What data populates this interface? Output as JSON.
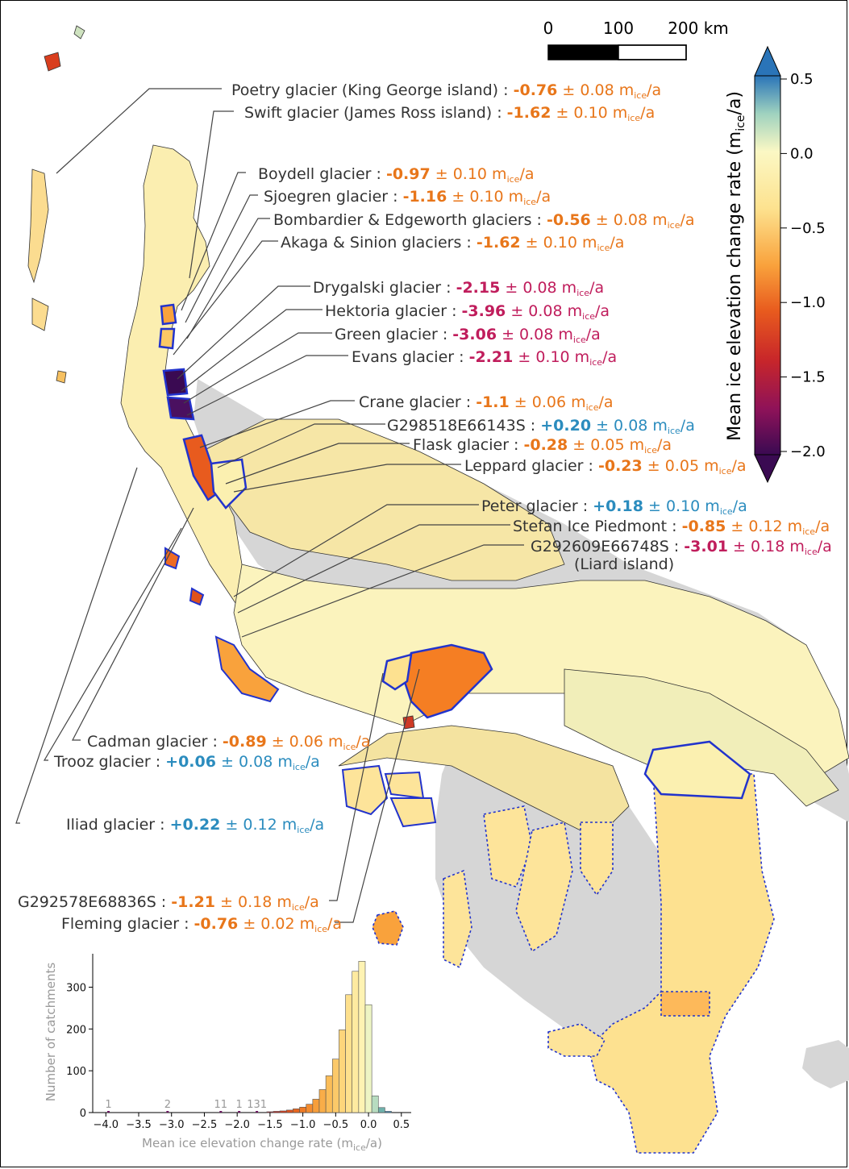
{
  "scale_bar": {
    "ticks": [
      "0",
      "100",
      "200 km"
    ]
  },
  "colorbar": {
    "title": "Mean ice elevation change rate (m",
    "title_sub": "ice",
    "title_end": "/a)",
    "ticks": [
      "0.5",
      "0.0",
      "−0.5",
      "−1.0",
      "−1.5",
      "−2.0"
    ],
    "range": [
      -2.0,
      0.5
    ],
    "colormap": "spectral (purple → red → orange → yellow → green → blue)"
  },
  "labels": [
    {
      "name": "Poetry glacier (King George island) : ",
      "value": "-0.76",
      "err": "± 0.08 m",
      "color": "#e8761a"
    },
    {
      "name": "Swift glacier (James Ross island) : ",
      "value": "-1.62",
      "err": "± 0.10 m",
      "color": "#e8761a"
    },
    {
      "name": "Boydell glacier : ",
      "value": "-0.97",
      "err": "± 0.10 m",
      "color": "#e8761a"
    },
    {
      "name": "Sjoegren glacier : ",
      "value": "-1.16",
      "err": "± 0.10 m",
      "color": "#e8761a"
    },
    {
      "name": "Bombardier & Edgeworth glaciers : ",
      "value": "-0.56",
      "err": "± 0.08 m",
      "color": "#e8761a"
    },
    {
      "name": "Akaga & Sinion glaciers : ",
      "value": "-1.62",
      "err": "± 0.10 m",
      "color": "#e8761a"
    },
    {
      "name": "Drygalski glacier : ",
      "value": "-2.15",
      "err": "± 0.08 m",
      "color": "#c01d5c"
    },
    {
      "name": "Hektoria glacier : ",
      "value": "-3.96",
      "err": "± 0.08 m",
      "color": "#c01d5c"
    },
    {
      "name": "Green glacier : ",
      "value": "-3.06",
      "err": "± 0.08 m",
      "color": "#c01d5c"
    },
    {
      "name": "Evans glacier : ",
      "value": "-2.21",
      "err": "± 0.10 m",
      "color": "#c01d5c"
    },
    {
      "name": "Crane glacier : ",
      "value": "-1.1",
      "err": "± 0.06 m",
      "color": "#e8761a"
    },
    {
      "name": "G298518E66143S : ",
      "value": "+0.20",
      "err": "± 0.08 m",
      "color": "#2b8cbe"
    },
    {
      "name": "Flask glacier : ",
      "value": "-0.28",
      "err": "± 0.05 m",
      "color": "#e8761a"
    },
    {
      "name": "Leppard glacier : ",
      "value": "-0.23",
      "err": "± 0.05 m",
      "color": "#e8761a"
    },
    {
      "name": "Peter glacier : ",
      "value": "+0.18",
      "err": "± 0.10 m",
      "color": "#2b8cbe"
    },
    {
      "name": "Stefan Ice Piedmont : ",
      "value": "-0.85",
      "err": "± 0.12 m",
      "color": "#e8761a"
    },
    {
      "name": "G292609E66748S : ",
      "value": "-3.01",
      "err": "± 0.18 m",
      "color": "#c01d5c"
    },
    {
      "name": "Cadman glacier : ",
      "value": "-0.89",
      "err": "± 0.06 m",
      "color": "#e8761a"
    },
    {
      "name": "Trooz glacier : ",
      "value": "+0.06",
      "err": "± 0.08 m",
      "color": "#2b8cbe"
    },
    {
      "name": "Iliad glacier : ",
      "value": "+0.22",
      "err": "± 0.12 m",
      "color": "#2b8cbe"
    },
    {
      "name": "G292578E68836S : ",
      "value": "-1.21",
      "err": "± 0.18 m",
      "color": "#e8761a"
    },
    {
      "name": "Fleming glacier : ",
      "value": "-0.76",
      "err": "± 0.02 m",
      "color": "#e8761a"
    }
  ],
  "unit_sub": "ice",
  "unit_end": "/a",
  "liard_note": "(Liard island)",
  "chart_data": {
    "type": "bar",
    "xlabel": "Mean ice elevation change rate (m",
    "xlabel_sub": "ice",
    "xlabel_end": "/a)",
    "ylabel": "Number of catchments",
    "xlim": [
      -4.2,
      0.65
    ],
    "ylim": [
      0,
      380
    ],
    "xticks": [
      "−4.0",
      "−3.5",
      "−3.0",
      "−2.5",
      "−2.0",
      "−1.5",
      "−1.0",
      "−0.5",
      "0.0",
      "0.5"
    ],
    "xtick_values": [
      -4.0,
      -3.5,
      -3.0,
      -2.5,
      -2.0,
      -1.5,
      -1.0,
      -0.5,
      0.0,
      0.5
    ],
    "yticks": [
      "0",
      "100",
      "200",
      "300"
    ],
    "ytick_values": [
      0,
      100,
      200,
      300
    ],
    "bin_width": 0.1,
    "bins": [
      {
        "x": -1.5,
        "count": 2,
        "color": "#b2182b"
      },
      {
        "x": -1.4,
        "count": 3,
        "color": "#c22a23"
      },
      {
        "x": -1.3,
        "count": 4,
        "color": "#d73e1d"
      },
      {
        "x": -1.2,
        "count": 6,
        "color": "#e0521c"
      },
      {
        "x": -1.1,
        "count": 9,
        "color": "#e8661f"
      },
      {
        "x": -1.0,
        "count": 13,
        "color": "#ef7a24"
      },
      {
        "x": -0.9,
        "count": 20,
        "color": "#f48c2e"
      },
      {
        "x": -0.8,
        "count": 32,
        "color": "#f79e3a"
      },
      {
        "x": -0.7,
        "count": 55,
        "color": "#f9ad48"
      },
      {
        "x": -0.6,
        "count": 88,
        "color": "#fbbd58"
      },
      {
        "x": -0.5,
        "count": 128,
        "color": "#fcc969"
      },
      {
        "x": -0.4,
        "count": 198,
        "color": "#fdd57b"
      },
      {
        "x": -0.3,
        "count": 282,
        "color": "#fde08d"
      },
      {
        "x": -0.2,
        "count": 338,
        "color": "#feeaa0"
      },
      {
        "x": -0.1,
        "count": 362,
        "color": "#fef3b3"
      },
      {
        "x": 0.0,
        "count": 258,
        "color": "#eef5c4"
      },
      {
        "x": 0.1,
        "count": 40,
        "color": "#b7dcc0"
      },
      {
        "x": 0.2,
        "count": 12,
        "color": "#6fb1ac"
      },
      {
        "x": 0.3,
        "count": 3,
        "color": "#3c8cbb"
      }
    ],
    "outlier_counts": [
      {
        "x": -3.96,
        "label": "1"
      },
      {
        "x": -3.06,
        "label": "2"
      },
      {
        "x": -2.25,
        "label": "11"
      },
      {
        "x": -1.97,
        "label": "1"
      },
      {
        "x": -1.7,
        "label": "131"
      }
    ]
  }
}
